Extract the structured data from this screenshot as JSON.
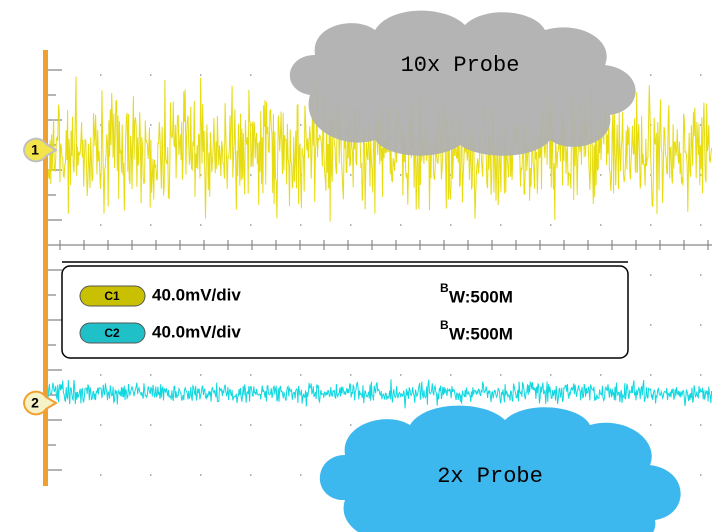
{
  "channels": [
    {
      "marker": "1"
    },
    {
      "marker": "2"
    }
  ],
  "legend": {
    "rows": [
      {
        "channel": "C1",
        "scale": "40.0mV/div",
        "bw_sup": "B",
        "bw": "W:500M"
      },
      {
        "channel": "C2",
        "scale": "40.0mV/div",
        "bw_sup": "B",
        "bw": "W:500M"
      }
    ]
  },
  "callouts": [
    {
      "label": "10x Probe"
    },
    {
      "label": "2x Probe"
    }
  ]
}
